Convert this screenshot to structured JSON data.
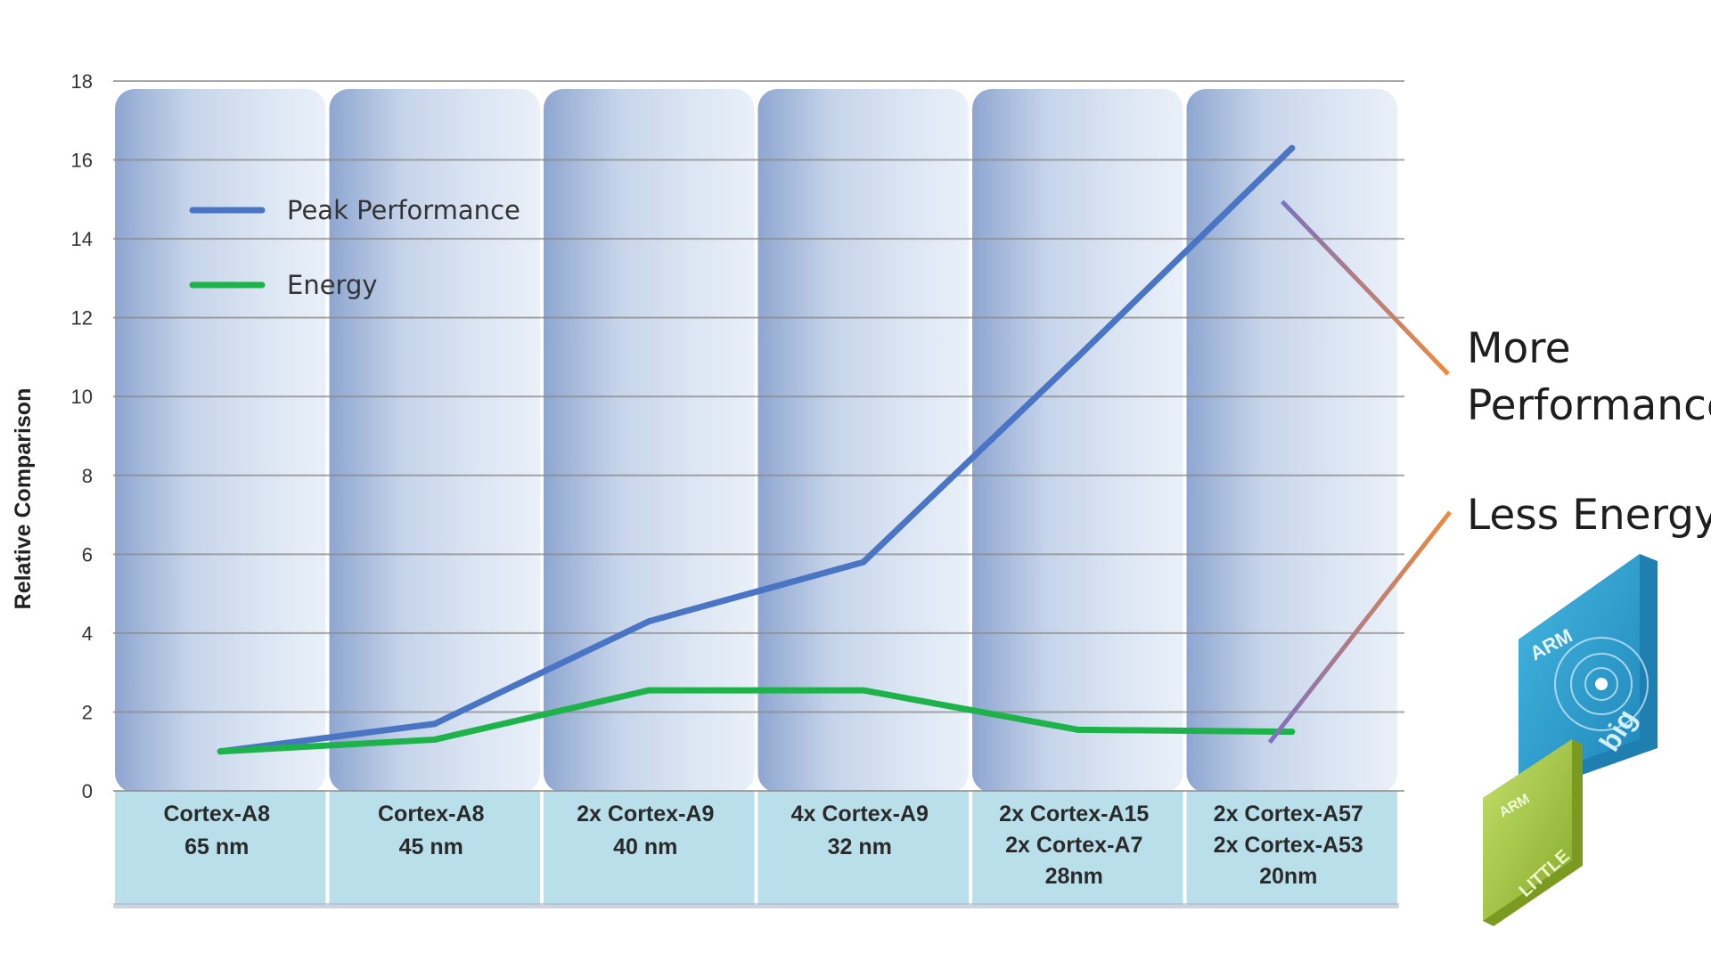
{
  "chart_data": {
    "type": "line",
    "title": "",
    "xlabel": "",
    "ylabel": "Relative Comparison",
    "ylim": [
      0,
      18
    ],
    "yticks": [
      0,
      2,
      4,
      6,
      8,
      10,
      12,
      14,
      16,
      18
    ],
    "grid": true,
    "legend_position": "top-left",
    "categories": [
      [
        "Cortex-A8",
        "65 nm"
      ],
      [
        "Cortex-A8",
        "45 nm"
      ],
      [
        "2x Cortex-A9",
        "40 nm"
      ],
      [
        "4x Cortex-A9",
        "32 nm"
      ],
      [
        "2x Cortex-A15",
        "2x Cortex-A7",
        "28nm"
      ],
      [
        "2x Cortex-A57",
        "2x Cortex-A53",
        "20nm"
      ]
    ],
    "series": [
      {
        "name": "Peak Performance",
        "color": "#4a74c4",
        "values": [
          1.0,
          1.7,
          4.3,
          5.8,
          11.0,
          16.3
        ]
      },
      {
        "name": "Energy",
        "color": "#1db34a",
        "values": [
          1.0,
          1.3,
          2.55,
          2.55,
          1.55,
          1.5
        ]
      }
    ],
    "annotations": [
      {
        "lines": [
          "More",
          "Performance"
        ],
        "color": "#f08a3c"
      },
      {
        "lines": [
          "Less Energy"
        ],
        "color": "#f08a3c"
      }
    ]
  },
  "logos": {
    "big_chip": {
      "brand": "ARM",
      "label": "big",
      "color": "#2a9fcc"
    },
    "little_chip": {
      "brand": "ARM",
      "label": "LITTLE",
      "color": "#9cc23c"
    }
  }
}
